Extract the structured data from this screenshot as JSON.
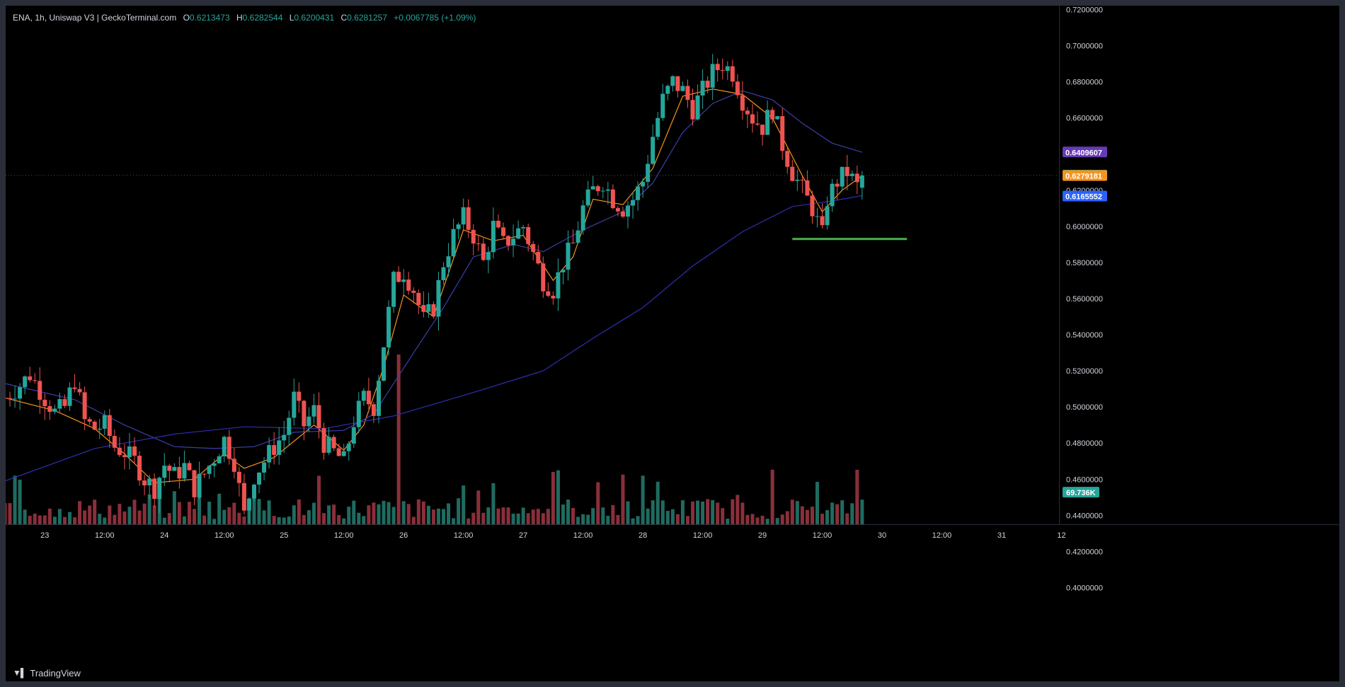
{
  "legend": {
    "symbol": "ENA, 1h, Uniswap V3 | GeckoTerminal.com",
    "o_label": "O",
    "o": "0.6213473",
    "h_label": "H",
    "h": "0.6282544",
    "l_label": "L",
    "l": "0.6200431",
    "c_label": "C",
    "c": "0.6281257",
    "change": "+0.0067785 (+1.09%)"
  },
  "branding": {
    "logo_icon": "tradingview-logo-icon",
    "name": "TradingView"
  },
  "colors": {
    "up": "#26a69a",
    "down": "#ef5350",
    "ma_fast": "#f7931a",
    "ma_mid": "#3d3fa8",
    "ma_slow": "#2e2fb0",
    "support_line": "#4caf50",
    "grid_text": "#d1d4dc"
  },
  "price_tags": [
    {
      "value": "0.6409607",
      "color": "#673ab7"
    },
    {
      "value": "0.6281257",
      "color": "#26a69a"
    },
    {
      "value": "0.6279181",
      "color": "#f7931a"
    },
    {
      "value": "0.6165552",
      "color": "#2962ff"
    }
  ],
  "volume_tag": {
    "value": "69.736K",
    "color": "#26a69a"
  },
  "chart_data": {
    "type": "candlestick",
    "timeframe": "1h",
    "scale": "linear",
    "grid": false,
    "ylim": [
      0.39,
      0.725
    ],
    "y_ticks": [
      "0.7200000",
      "0.7000000",
      "0.6800000",
      "0.6600000",
      "0.6400000",
      "0.6200000",
      "0.6000000",
      "0.5800000",
      "0.5600000",
      "0.5400000",
      "0.5200000",
      "0.5000000",
      "0.4800000",
      "0.4600000",
      "0.4400000",
      "0.4200000",
      "0.4000000"
    ],
    "x_ticks": [
      "23",
      "12:00",
      "24",
      "12:00",
      "25",
      "12:00",
      "26",
      "12:00",
      "27",
      "12:00",
      "28",
      "12:00",
      "29",
      "12:00",
      "30",
      "12:00",
      "31",
      "12"
    ],
    "x_tick_hours": [
      0,
      12,
      24,
      36,
      48,
      60,
      72,
      84,
      96,
      108,
      120,
      132,
      144,
      156,
      168,
      180,
      192,
      204
    ],
    "first_candle_hour": -8,
    "close_path": [
      [
        -8,
        0.505
      ],
      [
        -5,
        0.512
      ],
      [
        -3,
        0.518
      ],
      [
        0,
        0.505
      ],
      [
        2,
        0.497
      ],
      [
        4,
        0.5
      ],
      [
        6,
        0.515
      ],
      [
        8,
        0.492
      ],
      [
        10,
        0.488
      ],
      [
        12,
        0.49
      ],
      [
        14,
        0.478
      ],
      [
        16,
        0.475
      ],
      [
        18,
        0.47
      ],
      [
        20,
        0.46
      ],
      [
        22,
        0.455
      ],
      [
        24,
        0.468
      ],
      [
        26,
        0.462
      ],
      [
        28,
        0.467
      ],
      [
        30,
        0.455
      ],
      [
        32,
        0.463
      ],
      [
        34,
        0.472
      ],
      [
        36,
        0.482
      ],
      [
        38,
        0.47
      ],
      [
        40,
        0.44
      ],
      [
        42,
        0.462
      ],
      [
        44,
        0.47
      ],
      [
        46,
        0.478
      ],
      [
        48,
        0.485
      ],
      [
        50,
        0.505
      ],
      [
        52,
        0.49
      ],
      [
        54,
        0.498
      ],
      [
        56,
        0.48
      ],
      [
        58,
        0.475
      ],
      [
        60,
        0.47
      ],
      [
        62,
        0.492
      ],
      [
        64,
        0.505
      ],
      [
        66,
        0.5
      ],
      [
        68,
        0.535
      ],
      [
        70,
        0.57
      ],
      [
        72,
        0.575
      ],
      [
        74,
        0.565
      ],
      [
        76,
        0.548
      ],
      [
        78,
        0.555
      ],
      [
        80,
        0.58
      ],
      [
        82,
        0.595
      ],
      [
        84,
        0.605
      ],
      [
        86,
        0.595
      ],
      [
        88,
        0.58
      ],
      [
        90,
        0.6
      ],
      [
        92,
        0.59
      ],
      [
        94,
        0.595
      ],
      [
        96,
        0.6
      ],
      [
        98,
        0.585
      ],
      [
        100,
        0.57
      ],
      [
        102,
        0.565
      ],
      [
        104,
        0.58
      ],
      [
        106,
        0.59
      ],
      [
        108,
        0.61
      ],
      [
        110,
        0.62
      ],
      [
        112,
        0.625
      ],
      [
        114,
        0.615
      ],
      [
        116,
        0.61
      ],
      [
        118,
        0.615
      ],
      [
        120,
        0.625
      ],
      [
        122,
        0.65
      ],
      [
        124,
        0.67
      ],
      [
        126,
        0.68
      ],
      [
        128,
        0.675
      ],
      [
        130,
        0.665
      ],
      [
        132,
        0.675
      ],
      [
        134,
        0.685
      ],
      [
        136,
        0.69
      ],
      [
        138,
        0.685
      ],
      [
        140,
        0.67
      ],
      [
        142,
        0.66
      ],
      [
        144,
        0.655
      ],
      [
        146,
        0.665
      ],
      [
        148,
        0.645
      ],
      [
        150,
        0.63
      ],
      [
        152,
        0.62
      ],
      [
        154,
        0.61
      ],
      [
        156,
        0.595
      ],
      [
        157,
        0.615
      ],
      [
        159,
        0.625
      ],
      [
        161,
        0.63
      ],
      [
        163,
        0.622
      ],
      [
        164,
        0.628
      ]
    ],
    "support_level": 0.593,
    "moving_averages": [
      {
        "color_key": "ma_fast",
        "values": [
          [
            -8,
            0.505
          ],
          [
            2,
            0.498
          ],
          [
            10,
            0.488
          ],
          [
            16,
            0.474
          ],
          [
            22,
            0.458
          ],
          [
            30,
            0.46
          ],
          [
            36,
            0.474
          ],
          [
            40,
            0.466
          ],
          [
            46,
            0.472
          ],
          [
            54,
            0.49
          ],
          [
            60,
            0.476
          ],
          [
            64,
            0.49
          ],
          [
            68,
            0.522
          ],
          [
            72,
            0.562
          ],
          [
            78,
            0.55
          ],
          [
            84,
            0.598
          ],
          [
            90,
            0.592
          ],
          [
            96,
            0.595
          ],
          [
            102,
            0.57
          ],
          [
            106,
            0.583
          ],
          [
            110,
            0.615
          ],
          [
            116,
            0.612
          ],
          [
            122,
            0.632
          ],
          [
            128,
            0.672
          ],
          [
            134,
            0.676
          ],
          [
            140,
            0.673
          ],
          [
            146,
            0.66
          ],
          [
            152,
            0.628
          ],
          [
            156,
            0.608
          ],
          [
            160,
            0.62
          ],
          [
            164,
            0.628
          ]
        ]
      },
      {
        "color_key": "ma_mid",
        "values": [
          [
            -8,
            0.513
          ],
          [
            6,
            0.504
          ],
          [
            16,
            0.49
          ],
          [
            26,
            0.478
          ],
          [
            34,
            0.477
          ],
          [
            42,
            0.478
          ],
          [
            50,
            0.486
          ],
          [
            60,
            0.487
          ],
          [
            66,
            0.496
          ],
          [
            74,
            0.53
          ],
          [
            80,
            0.555
          ],
          [
            86,
            0.583
          ],
          [
            94,
            0.59
          ],
          [
            100,
            0.586
          ],
          [
            108,
            0.598
          ],
          [
            116,
            0.608
          ],
          [
            122,
            0.624
          ],
          [
            128,
            0.652
          ],
          [
            134,
            0.668
          ],
          [
            140,
            0.675
          ],
          [
            146,
            0.67
          ],
          [
            152,
            0.657
          ],
          [
            158,
            0.646
          ],
          [
            164,
            0.641
          ]
        ]
      },
      {
        "color_key": "ma_slow",
        "values": [
          [
            -8,
            0.459
          ],
          [
            10,
            0.477
          ],
          [
            26,
            0.485
          ],
          [
            40,
            0.489
          ],
          [
            56,
            0.488
          ],
          [
            70,
            0.495
          ],
          [
            86,
            0.508
          ],
          [
            100,
            0.52
          ],
          [
            110,
            0.538
          ],
          [
            120,
            0.555
          ],
          [
            130,
            0.578
          ],
          [
            140,
            0.597
          ],
          [
            150,
            0.611
          ],
          [
            158,
            0.614
          ],
          [
            164,
            0.617
          ]
        ]
      }
    ],
    "volume_unit": "K",
    "volume_ylim": [
      0,
      500
    ],
    "volume_spike": {
      "hour": 71,
      "value": 480
    },
    "volume_current": 69.736
  }
}
